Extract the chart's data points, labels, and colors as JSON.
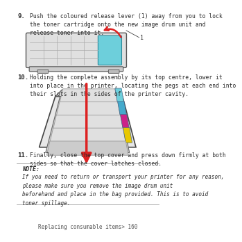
{
  "bg_color": "#ffffff",
  "step9_num": "9.",
  "step9_text": "Push the coloured release lever (1) away from you to lock\nthe toner cartridge onto the new image drum unit and\nrelease toner into it.",
  "step10_num": "10.",
  "step10_text": "Holding the complete assembly by its top centre, lower it\ninto place in the printer, locating the pegs at each end into\ntheir slots in the sides of the printer cavity.",
  "step11_num": "11.",
  "step11_text": "Finally, close the top cover and press down firmly at both\nsides so that the cover latches closed.",
  "note_label": "NOTE:",
  "note_text": "If you need to return or transport your printer for any reason,\nplease make sure you remove the image drum unit\nbeforehand and place in the bag provided. This is to avoid\ntoner spillage.",
  "footer_text": "Replacing consumable items> 160",
  "text_color": "#2a2a2a",
  "note_color": "#2a2a2a",
  "footer_color": "#555555",
  "line_color": "#999999",
  "cyan_color": "#6dcfdb",
  "red_color": "#dd2222",
  "yellow_color": "#e8c800",
  "magenta_color": "#cc2288",
  "teal_color": "#44aacc",
  "body_gray": "#d8d8d8",
  "dark_gray": "#888888",
  "mid_gray": "#bbbbbb",
  "light_gray": "#eeeeee",
  "outline_color": "#555555"
}
